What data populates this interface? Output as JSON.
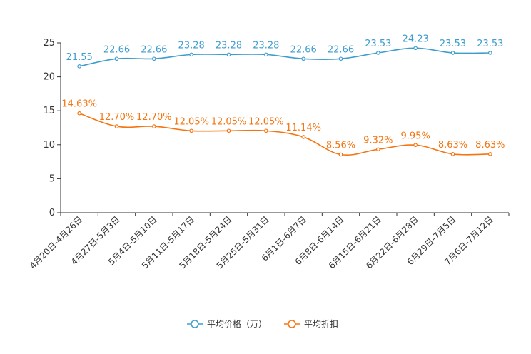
{
  "chart_data": {
    "type": "line",
    "categories": [
      "4月20日-4月26日",
      "4月27日-5月3日",
      "5月4日-5月10日",
      "5月11日-5月17日",
      "5月18日-5月24日",
      "5月25日-5月31日",
      "6月1日-6月7日",
      "6月8日-6月14日",
      "6月15日-6月21日",
      "6月22日-6月28日",
      "6月29日-7月5日",
      "7月6日-7月12日"
    ],
    "series": [
      {
        "name": "平均价格（万）",
        "color": "#3e9dcf",
        "values": [
          21.55,
          22.66,
          22.66,
          23.28,
          23.28,
          23.28,
          22.66,
          22.66,
          23.53,
          24.23,
          23.53,
          23.53
        ],
        "labels": [
          "21.55",
          "22.66",
          "22.66",
          "23.28",
          "23.28",
          "23.28",
          "22.66",
          "22.66",
          "23.53",
          "24.23",
          "23.53",
          "23.53"
        ]
      },
      {
        "name": "平均折扣",
        "color": "#f6740f",
        "values": [
          14.63,
          12.7,
          12.7,
          12.05,
          12.05,
          12.05,
          11.14,
          8.56,
          9.32,
          9.95,
          8.63,
          8.63
        ],
        "labels": [
          "14.63%",
          "12.70%",
          "12.70%",
          "12.05%",
          "12.05%",
          "12.05%",
          "11.14%",
          "8.56%",
          "9.32%",
          "9.95%",
          "8.63%",
          "8.63%"
        ]
      }
    ],
    "yticks": [
      "0",
      "5",
      "10",
      "15",
      "20",
      "25"
    ],
    "ylim": [
      0,
      25
    ],
    "title": "",
    "xlabel": "",
    "ylabel": "",
    "legend_position": "bottom-center"
  }
}
